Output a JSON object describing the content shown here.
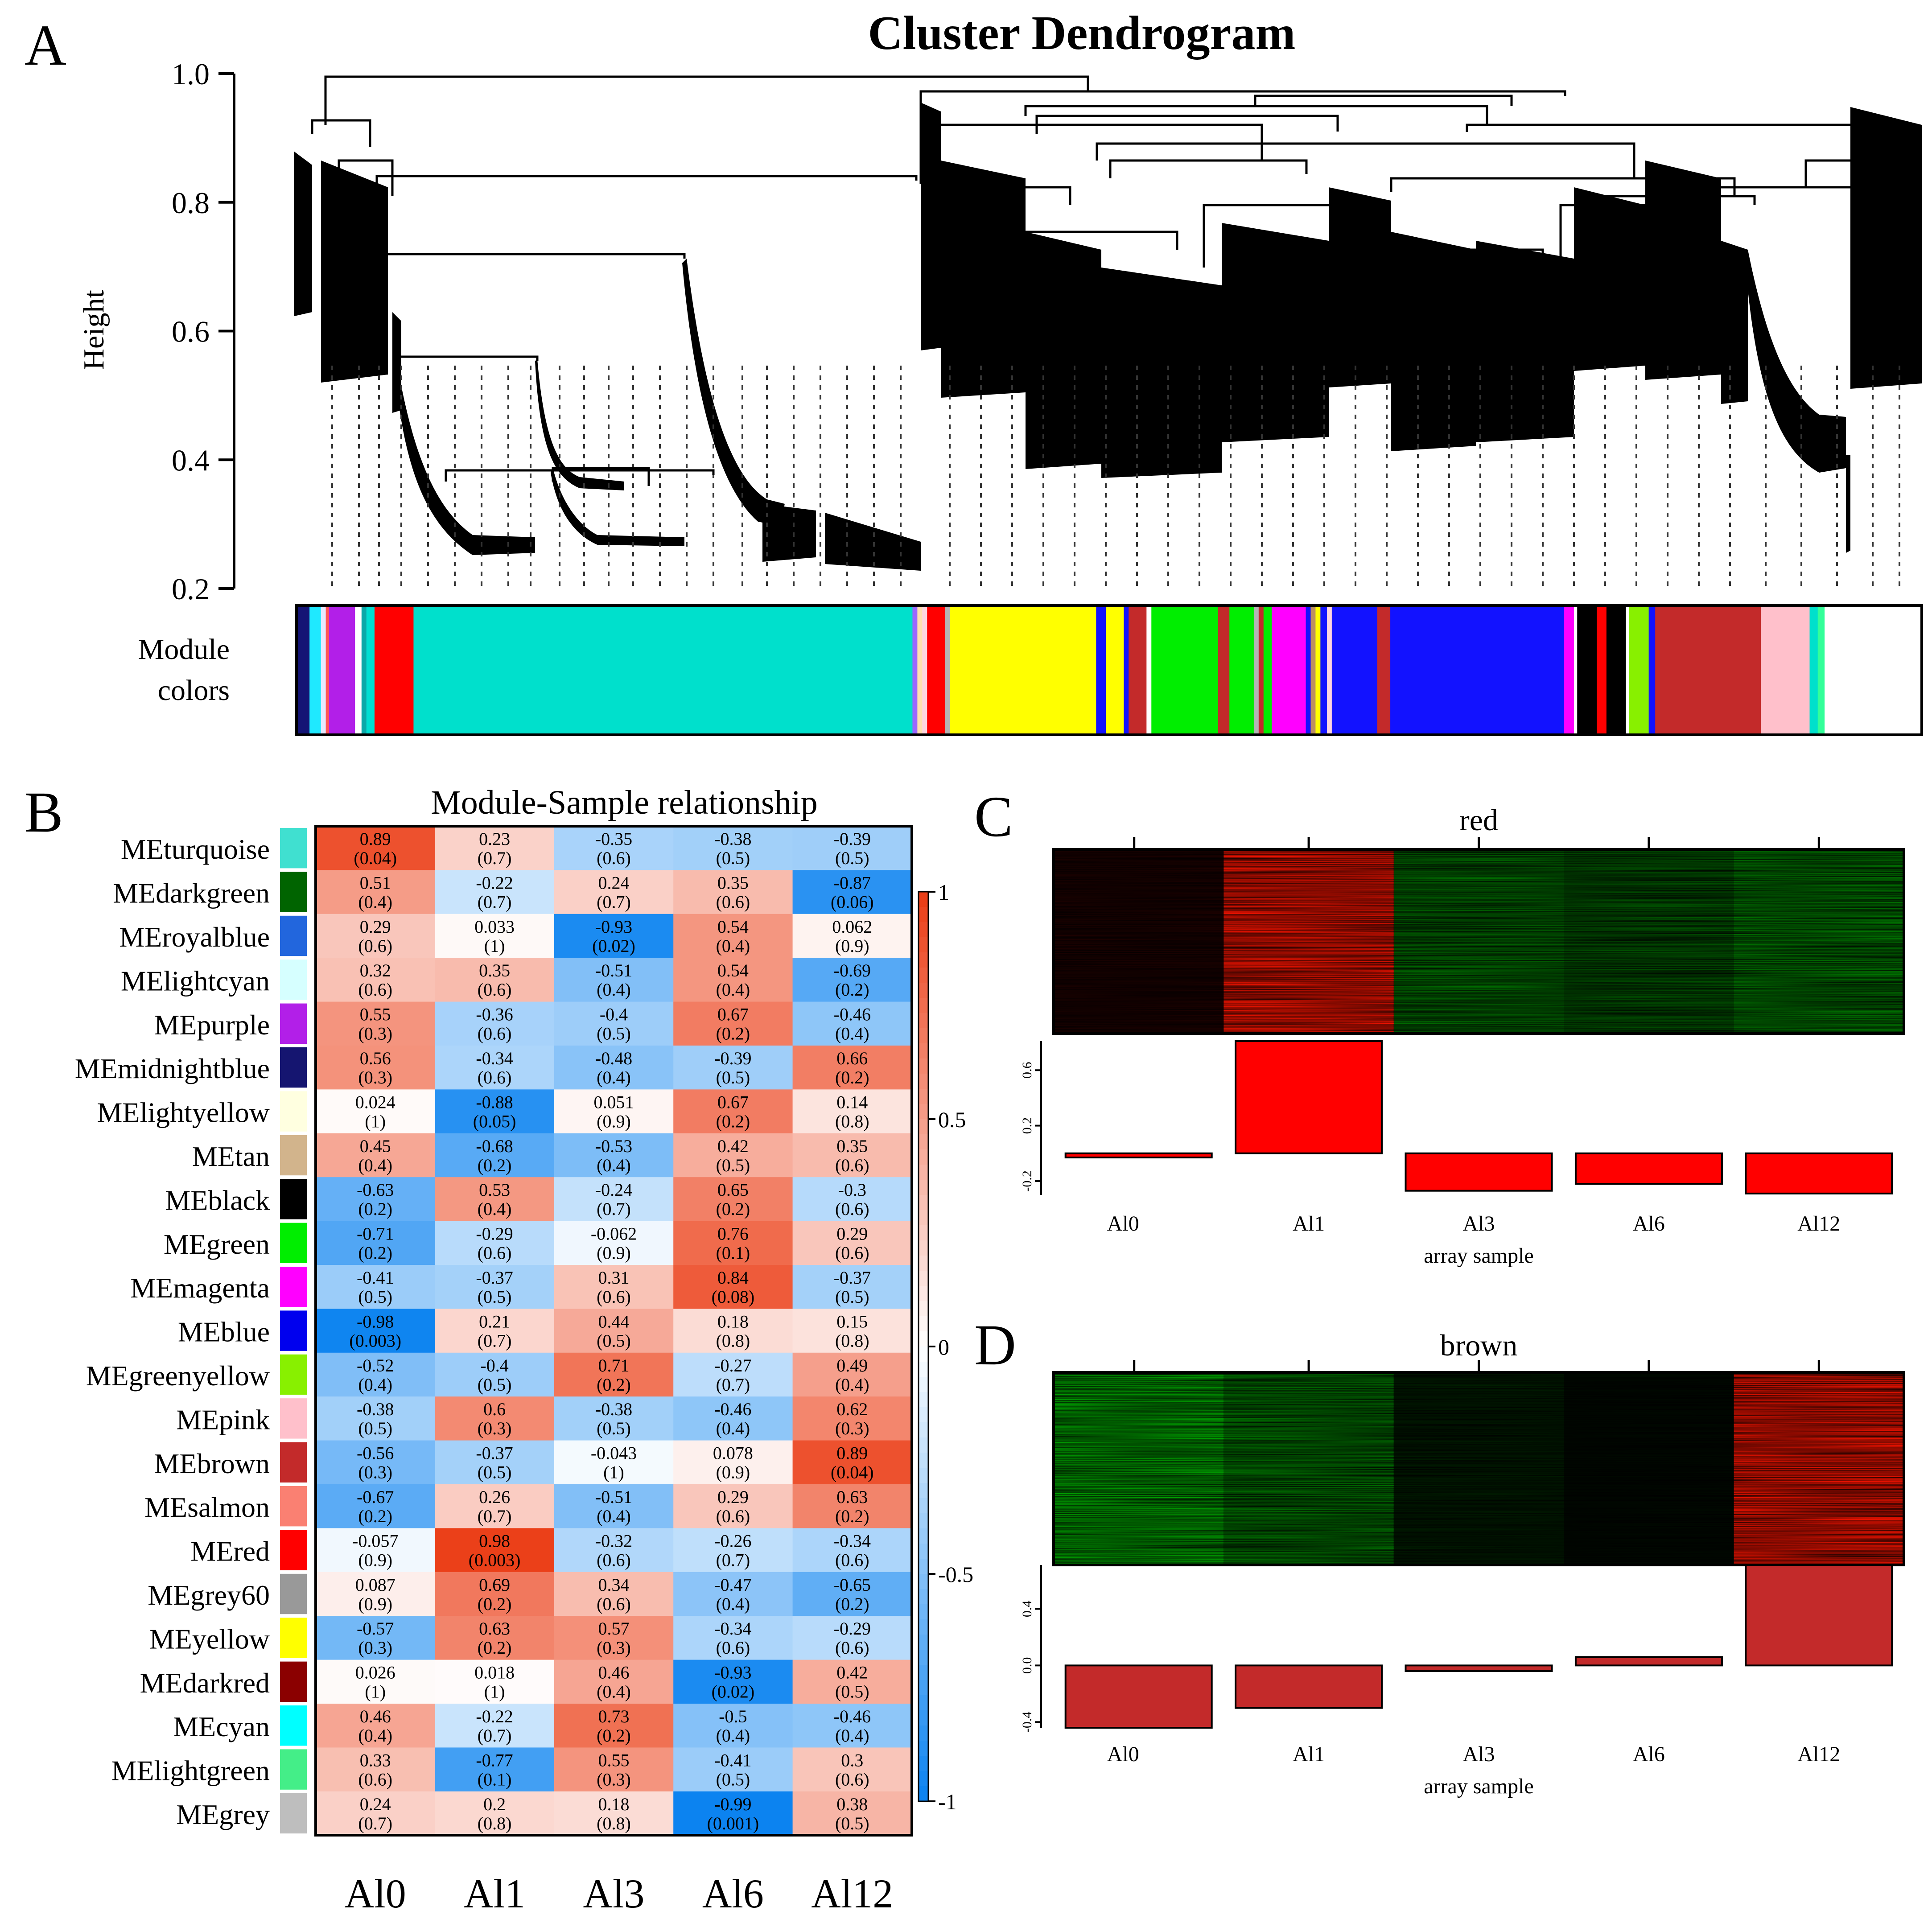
{
  "panel_letters": [
    "A",
    "B",
    "C",
    "D"
  ],
  "chart_data": [
    {
      "id": "A",
      "type": "dendrogram",
      "title": "Cluster Dendrogram",
      "ylabel": "Height",
      "yticks": [
        0.2,
        0.4,
        0.6,
        0.8,
        1.0
      ],
      "ylim": [
        0.2,
        1.0
      ],
      "colorbar_label_line1": "Module",
      "colorbar_label_line2": "colors",
      "module_color_strip": [
        [
          "#151575",
          0.008
        ],
        [
          "#1fe9ff",
          0.007
        ],
        [
          "#e8e8ff",
          0.003
        ],
        [
          "#ff5555",
          0.002
        ],
        [
          "#b21fe8",
          0.016
        ],
        [
          "#ffffff",
          0.004
        ],
        [
          "#0aa8a8",
          0.003
        ],
        [
          "#00ded2",
          0.005
        ],
        [
          "#ff0000",
          0.024
        ],
        [
          "#00e0cc",
          0.307
        ],
        [
          "#9a66ff",
          0.003
        ],
        [
          "#ffe0b0",
          0.003
        ],
        [
          "#ffd6e0",
          0.003
        ],
        [
          "#ff0000",
          0.011
        ],
        [
          "#b5b5b5",
          0.003
        ],
        [
          "#ffff00",
          0.09
        ],
        [
          "#1212ff",
          0.006
        ],
        [
          "#ffff00",
          0.011
        ],
        [
          "#1212ff",
          0.003
        ],
        [
          "#c32a2a",
          0.011
        ],
        [
          "#ffffff",
          0.003
        ],
        [
          "#00ee00",
          0.041
        ],
        [
          "#c32a2a",
          0.007
        ],
        [
          "#00ee00",
          0.015
        ],
        [
          "#b5b5b5",
          0.003
        ],
        [
          "#c32a2a",
          0.003
        ],
        [
          "#00ee00",
          0.005
        ],
        [
          "#ff00ff",
          0.021
        ],
        [
          "#1212ff",
          0.003
        ],
        [
          "#bd9060",
          0.003
        ],
        [
          "#ffff00",
          0.003
        ],
        [
          "#1212ff",
          0.004
        ],
        [
          "#ffd6e0",
          0.003
        ],
        [
          "#1212ff",
          0.028
        ],
        [
          "#c32a2a",
          0.008
        ],
        [
          "#1212ff",
          0.107
        ],
        [
          "#ff00ff",
          0.006
        ],
        [
          "#ffffff",
          0.002
        ],
        [
          "#000000",
          0.012
        ],
        [
          "#ff0000",
          0.006
        ],
        [
          "#000000",
          0.012
        ],
        [
          "#ffffff",
          0.002
        ],
        [
          "#88f000",
          0.012
        ],
        [
          "#1212ff",
          0.004
        ],
        [
          "#c32a2a",
          0.065
        ],
        [
          "#ffc0cb",
          0.03
        ],
        [
          "#00e0cc",
          0.005
        ],
        [
          "#33ff99",
          0.004
        ]
      ]
    },
    {
      "id": "B",
      "type": "heatmap",
      "title": "Module-Sample relationship",
      "columns": [
        "Al0",
        "Al1",
        "Al3",
        "Al6",
        "Al12"
      ],
      "colorbar_ticks": [
        "1",
        "0.5",
        "0",
        "-0.5",
        "-1"
      ],
      "rows": [
        {
          "name": "MEturquoise",
          "color": "#40e0d0",
          "r": [
            "0.89",
            "0.23",
            "-0.35",
            "-0.38",
            "-0.39"
          ],
          "p": [
            "(0.04)",
            "(0.7)",
            "(0.6)",
            "(0.5)",
            "(0.5)"
          ]
        },
        {
          "name": "MEdarkgreen",
          "color": "#006400",
          "r": [
            "0.51",
            "-0.22",
            "0.24",
            "0.35",
            "-0.87"
          ],
          "p": [
            "(0.4)",
            "(0.7)",
            "(0.7)",
            "(0.6)",
            "(0.06)"
          ]
        },
        {
          "name": "MEroyalblue",
          "color": "#2266dd",
          "r": [
            "0.29",
            "0.033",
            "-0.93",
            "0.54",
            "0.062"
          ],
          "p": [
            "(0.6)",
            "(1)",
            "(0.02)",
            "(0.4)",
            "(0.9)"
          ]
        },
        {
          "name": "MElightcyan",
          "color": "#d6ffff",
          "r": [
            "0.32",
            "0.35",
            "-0.51",
            "0.54",
            "-0.69"
          ],
          "p": [
            "(0.6)",
            "(0.6)",
            "(0.4)",
            "(0.4)",
            "(0.2)"
          ]
        },
        {
          "name": "MEpurple",
          "color": "#b21fe8",
          "r": [
            "0.55",
            "-0.36",
            "-0.4",
            "0.67",
            "-0.46"
          ],
          "p": [
            "(0.3)",
            "(0.6)",
            "(0.5)",
            "(0.2)",
            "(0.4)"
          ]
        },
        {
          "name": "MEmidnightblue",
          "color": "#151570",
          "r": [
            "0.56",
            "-0.34",
            "-0.48",
            "-0.39",
            "0.66"
          ],
          "p": [
            "(0.3)",
            "(0.6)",
            "(0.4)",
            "(0.5)",
            "(0.2)"
          ]
        },
        {
          "name": "MElightyellow",
          "color": "#ffffe0",
          "r": [
            "0.024",
            "-0.88",
            "0.051",
            "0.67",
            "0.14"
          ],
          "p": [
            "(1)",
            "(0.05)",
            "(0.9)",
            "(0.2)",
            "(0.8)"
          ]
        },
        {
          "name": "MEtan",
          "color": "#d2b48c",
          "r": [
            "0.45",
            "-0.68",
            "-0.53",
            "0.42",
            "0.35"
          ],
          "p": [
            "(0.4)",
            "(0.2)",
            "(0.4)",
            "(0.5)",
            "(0.6)"
          ]
        },
        {
          "name": "MEblack",
          "color": "#000000",
          "r": [
            "-0.63",
            "0.53",
            "-0.24",
            "0.65",
            "-0.3"
          ],
          "p": [
            "(0.2)",
            "(0.4)",
            "(0.7)",
            "(0.2)",
            "(0.6)"
          ]
        },
        {
          "name": "MEgreen",
          "color": "#00ee00",
          "r": [
            "-0.71",
            "-0.29",
            "-0.062",
            "0.76",
            "0.29"
          ],
          "p": [
            "(0.2)",
            "(0.6)",
            "(0.9)",
            "(0.1)",
            "(0.6)"
          ]
        },
        {
          "name": "MEmagenta",
          "color": "#ff00ff",
          "r": [
            "-0.41",
            "-0.37",
            "0.31",
            "0.84",
            "-0.37"
          ],
          "p": [
            "(0.5)",
            "(0.5)",
            "(0.6)",
            "(0.08)",
            "(0.5)"
          ]
        },
        {
          "name": "MEblue",
          "color": "#0000ee",
          "r": [
            "-0.98",
            "0.21",
            "0.44",
            "0.18",
            "0.15"
          ],
          "p": [
            "(0.003)",
            "(0.7)",
            "(0.5)",
            "(0.8)",
            "(0.8)"
          ]
        },
        {
          "name": "MEgreenyellow",
          "color": "#88f000",
          "r": [
            "-0.52",
            "-0.4",
            "0.71",
            "-0.27",
            "0.49"
          ],
          "p": [
            "(0.4)",
            "(0.5)",
            "(0.2)",
            "(0.7)",
            "(0.4)"
          ]
        },
        {
          "name": "MEpink",
          "color": "#ffc0cb",
          "r": [
            "-0.38",
            "0.6",
            "-0.38",
            "-0.46",
            "0.62"
          ],
          "p": [
            "(0.5)",
            "(0.3)",
            "(0.5)",
            "(0.4)",
            "(0.3)"
          ]
        },
        {
          "name": "MEbrown",
          "color": "#c32a2a",
          "r": [
            "-0.56",
            "-0.37",
            "-0.043",
            "0.078",
            "0.89"
          ],
          "p": [
            "(0.3)",
            "(0.5)",
            "(1)",
            "(0.9)",
            "(0.04)"
          ]
        },
        {
          "name": "MEsalmon",
          "color": "#fa8072",
          "r": [
            "-0.67",
            "0.26",
            "-0.51",
            "0.29",
            "0.63"
          ],
          "p": [
            "(0.2)",
            "(0.7)",
            "(0.4)",
            "(0.6)",
            "(0.2)"
          ]
        },
        {
          "name": "MEred",
          "color": "#ff0000",
          "r": [
            "-0.057",
            "0.98",
            "-0.32",
            "-0.26",
            "-0.34"
          ],
          "p": [
            "(0.9)",
            "(0.003)",
            "(0.6)",
            "(0.7)",
            "(0.6)"
          ]
        },
        {
          "name": "MEgrey60",
          "color": "#999999",
          "r": [
            "0.087",
            "0.69",
            "0.34",
            "-0.47",
            "-0.65"
          ],
          "p": [
            "(0.9)",
            "(0.2)",
            "(0.6)",
            "(0.4)",
            "(0.2)"
          ]
        },
        {
          "name": "MEyellow",
          "color": "#ffff00",
          "r": [
            "-0.57",
            "0.63",
            "0.57",
            "-0.34",
            "-0.29"
          ],
          "p": [
            "(0.3)",
            "(0.2)",
            "(0.3)",
            "(0.6)",
            "(0.6)"
          ]
        },
        {
          "name": "MEdarkred",
          "color": "#8b0000",
          "r": [
            "0.026",
            "0.018",
            "0.46",
            "-0.93",
            "0.42"
          ],
          "p": [
            "(1)",
            "(1)",
            "(0.4)",
            "(0.02)",
            "(0.5)"
          ]
        },
        {
          "name": "MEcyan",
          "color": "#00ffff",
          "r": [
            "0.46",
            "-0.22",
            "0.73",
            "-0.5",
            "-0.46"
          ],
          "p": [
            "(0.4)",
            "(0.7)",
            "(0.2)",
            "(0.4)",
            "(0.4)"
          ]
        },
        {
          "name": "MElightgreen",
          "color": "#44ee88",
          "r": [
            "0.33",
            "-0.77",
            "0.55",
            "-0.41",
            "0.3"
          ],
          "p": [
            "(0.6)",
            "(0.1)",
            "(0.3)",
            "(0.5)",
            "(0.6)"
          ]
        },
        {
          "name": "MEgrey",
          "color": "#bebebe",
          "r": [
            "0.24",
            "0.2",
            "0.18",
            "-0.99",
            "0.38"
          ],
          "p": [
            "(0.7)",
            "(0.8)",
            "(0.8)",
            "(0.001)",
            "(0.5)"
          ]
        }
      ]
    },
    {
      "id": "C",
      "type": "bar",
      "title": "red",
      "xlabel": "array sample",
      "categories": [
        "Al0",
        "Al1",
        "Al3",
        "Al6",
        "Al12"
      ],
      "values": [
        -0.03,
        0.81,
        -0.27,
        -0.22,
        -0.29
      ],
      "yticks": [
        "0.6",
        "0.2",
        "-0.2"
      ],
      "ylim": [
        -0.3,
        0.81
      ],
      "bar_color": "#ff0000",
      "heatmap_levels": [
        0.12,
        1.0,
        -0.55,
        -0.45,
        -0.62
      ]
    },
    {
      "id": "D",
      "type": "bar",
      "title": "brown",
      "xlabel": "array sample",
      "categories": [
        "Al0",
        "Al1",
        "Al3",
        "Al6",
        "Al12"
      ],
      "values": [
        -0.44,
        -0.3,
        -0.04,
        0.06,
        0.71
      ],
      "yticks": [
        "0.4",
        "0.0",
        "-0.4"
      ],
      "ylim": [
        -0.44,
        0.71
      ],
      "bar_color": "#c32a2a",
      "heatmap_levels": [
        -0.85,
        -0.6,
        -0.15,
        -0.05,
        1.0
      ]
    }
  ]
}
